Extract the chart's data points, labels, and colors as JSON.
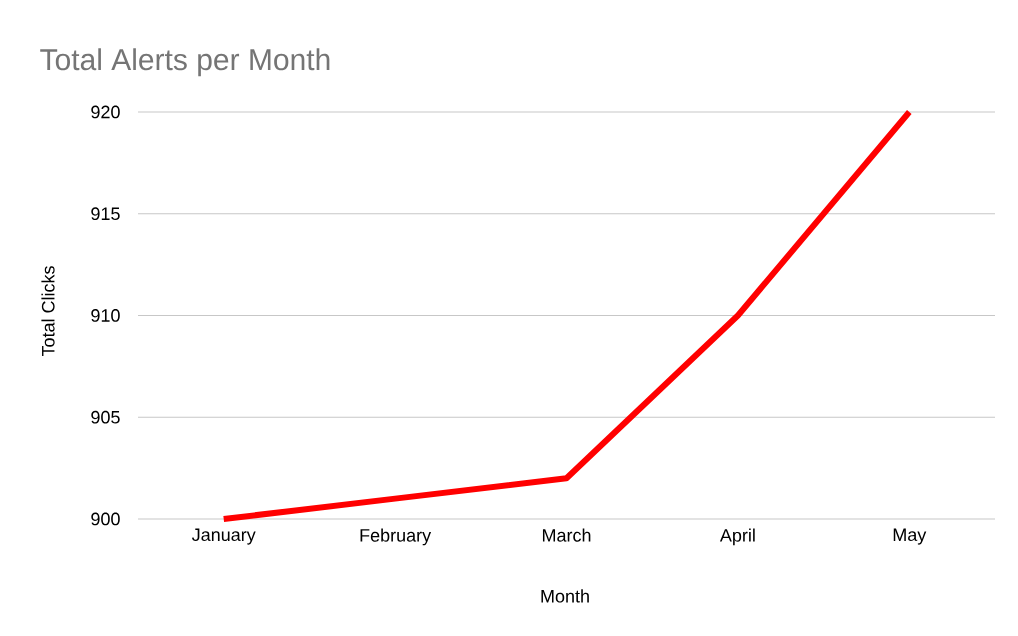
{
  "chart_data": {
    "type": "line",
    "title": "Total Alerts per Month",
    "xlabel": "Month",
    "ylabel": "Total Clicks",
    "categories": [
      "January",
      "February",
      "March",
      "April",
      "May"
    ],
    "values": [
      900,
      901,
      902,
      910,
      920
    ],
    "color": "#ff0000",
    "ylim": [
      900,
      920
    ],
    "yticks": [
      900,
      905,
      910,
      915,
      920
    ],
    "grid": "y",
    "marker": "none",
    "line_style": "solid"
  }
}
